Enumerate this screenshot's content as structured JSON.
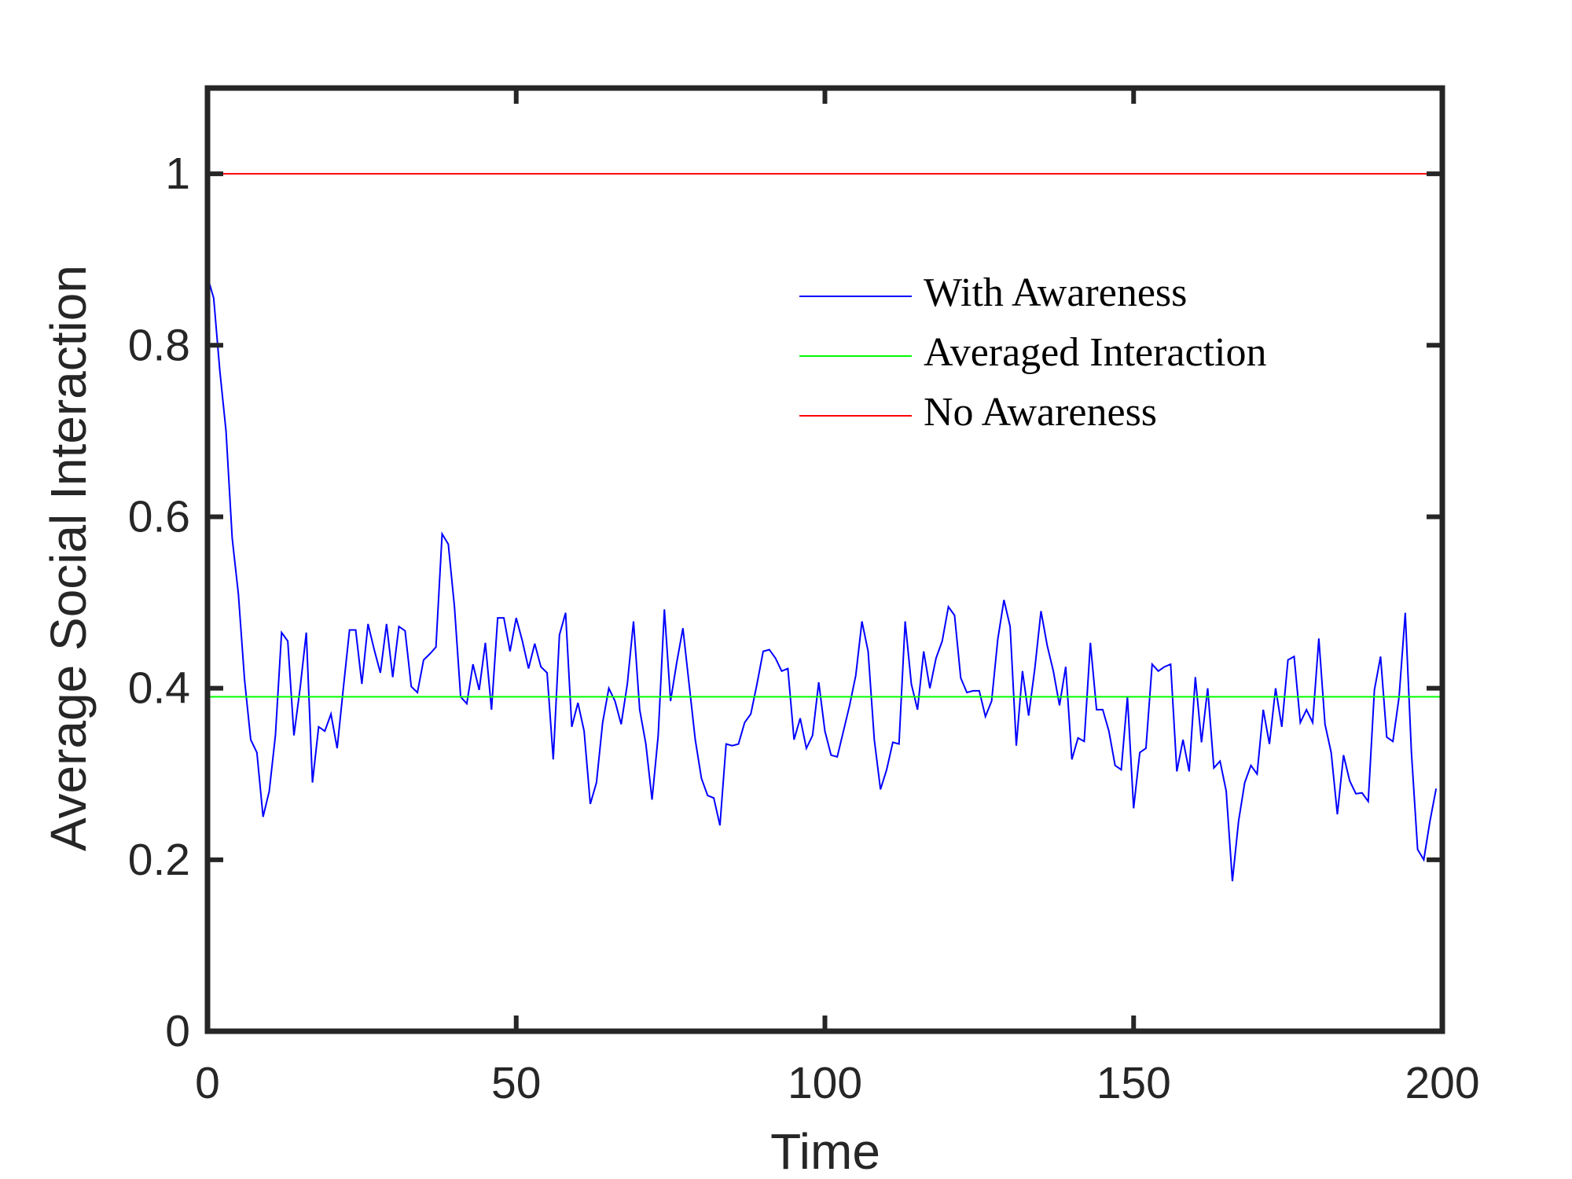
{
  "chart_data": {
    "type": "line",
    "xlabel": "Time",
    "ylabel": "Average Social Interaction",
    "xlim": [
      0,
      200
    ],
    "ylim": [
      0,
      1.1
    ],
    "xticks": [
      0,
      50,
      100,
      150,
      200
    ],
    "yticks": [
      0,
      0.2,
      0.4,
      0.6,
      0.8,
      1
    ],
    "grid": false,
    "legend": "upper right",
    "series": [
      {
        "name": "With Awareness",
        "color": "#0000ff",
        "x": [
          0,
          1,
          2,
          3,
          4,
          5,
          6,
          7,
          8,
          9,
          10,
          11,
          12,
          13,
          14,
          15,
          16,
          17,
          18,
          19,
          20,
          21,
          22,
          23,
          24,
          25,
          26,
          27,
          28,
          29,
          30,
          31,
          32,
          33,
          34,
          35,
          36,
          37,
          38,
          39,
          40,
          41,
          42,
          43,
          44,
          45,
          46,
          47,
          48,
          49,
          50,
          51,
          52,
          53,
          54,
          55,
          56,
          57,
          58,
          59,
          60,
          61,
          62,
          63,
          64,
          65,
          66,
          67,
          68,
          69,
          70,
          71,
          72,
          73,
          74,
          75,
          76,
          77,
          78,
          79,
          80,
          81,
          82,
          83,
          84,
          85,
          86,
          87,
          88,
          89,
          90,
          91,
          92,
          93,
          94,
          95,
          96,
          97,
          98,
          99,
          100,
          101,
          102,
          103,
          104,
          105,
          106,
          107,
          108,
          109,
          110,
          111,
          112,
          113,
          114,
          115,
          116,
          117,
          118,
          119,
          120,
          121,
          122,
          123,
          124,
          125,
          126,
          127,
          128,
          129,
          130,
          131,
          132,
          133,
          134,
          135,
          136,
          137,
          138,
          139,
          140,
          141,
          142,
          143,
          144,
          145,
          146,
          147,
          148,
          149,
          150,
          151,
          152,
          153,
          154,
          155,
          156,
          157,
          158,
          159,
          160,
          161,
          162,
          163,
          164,
          165,
          166,
          167,
          168,
          169,
          170,
          171,
          172,
          173,
          174,
          175,
          176,
          177,
          178,
          179,
          180,
          181,
          182,
          183,
          184,
          185,
          186,
          187,
          188,
          189,
          190,
          191,
          192,
          193,
          194,
          195,
          196,
          197,
          198,
          199
        ],
        "values": [
          0.88,
          0.855,
          0.77,
          0.7,
          0.575,
          0.51,
          0.41,
          0.34,
          0.325,
          0.25,
          0.28,
          0.345,
          0.465,
          0.455,
          0.345,
          0.4,
          0.465,
          0.29,
          0.355,
          0.35,
          0.37,
          0.33,
          0.4,
          0.468,
          0.468,
          0.405,
          0.475,
          0.445,
          0.418,
          0.475,
          0.413,
          0.472,
          0.467,
          0.402,
          0.395,
          0.433,
          0.44,
          0.448,
          0.58,
          0.568,
          0.495,
          0.39,
          0.382,
          0.428,
          0.398,
          0.453,
          0.375,
          0.482,
          0.482,
          0.443,
          0.482,
          0.455,
          0.423,
          0.452,
          0.425,
          0.418,
          0.317,
          0.462,
          0.488,
          0.355,
          0.383,
          0.35,
          0.265,
          0.29,
          0.36,
          0.4,
          0.385,
          0.358,
          0.405,
          0.478,
          0.375,
          0.335,
          0.27,
          0.345,
          0.492,
          0.385,
          0.43,
          0.47,
          0.405,
          0.34,
          0.295,
          0.275,
          0.272,
          0.24,
          0.335,
          0.333,
          0.335,
          0.36,
          0.37,
          0.405,
          0.443,
          0.445,
          0.435,
          0.42,
          0.423,
          0.34,
          0.365,
          0.33,
          0.345,
          0.407,
          0.35,
          0.322,
          0.32,
          0.35,
          0.38,
          0.415,
          0.478,
          0.443,
          0.34,
          0.282,
          0.305,
          0.337,
          0.335,
          0.478,
          0.405,
          0.375,
          0.443,
          0.4,
          0.435,
          0.455,
          0.495,
          0.485,
          0.412,
          0.395,
          0.397,
          0.397,
          0.367,
          0.385,
          0.457,
          0.503,
          0.472,
          0.333,
          0.42,
          0.368,
          0.423,
          0.49,
          0.45,
          0.42,
          0.38,
          0.425,
          0.317,
          0.342,
          0.338,
          0.453,
          0.375,
          0.375,
          0.35,
          0.31,
          0.305,
          0.39,
          0.26,
          0.325,
          0.33,
          0.428,
          0.42,
          0.425,
          0.428,
          0.303,
          0.34,
          0.303,
          0.413,
          0.337,
          0.4,
          0.307,
          0.315,
          0.28,
          0.175,
          0.245,
          0.29,
          0.31,
          0.3,
          0.375,
          0.335,
          0.4,
          0.355,
          0.433,
          0.437,
          0.36,
          0.375,
          0.36,
          0.458,
          0.358,
          0.325,
          0.253,
          0.322,
          0.292,
          0.277,
          0.278,
          0.268,
          0.398,
          0.437,
          0.343,
          0.338,
          0.39,
          0.488,
          0.325,
          0.212,
          0.2,
          0.245,
          0.283
        ]
      },
      {
        "name": "Averaged Interaction",
        "color": "#00ff00",
        "x": [
          0,
          200
        ],
        "values": [
          0.39,
          0.39
        ]
      },
      {
        "name": "No Awareness",
        "color": "#ff0000",
        "x": [
          0,
          200
        ],
        "values": [
          1,
          1
        ]
      }
    ]
  }
}
